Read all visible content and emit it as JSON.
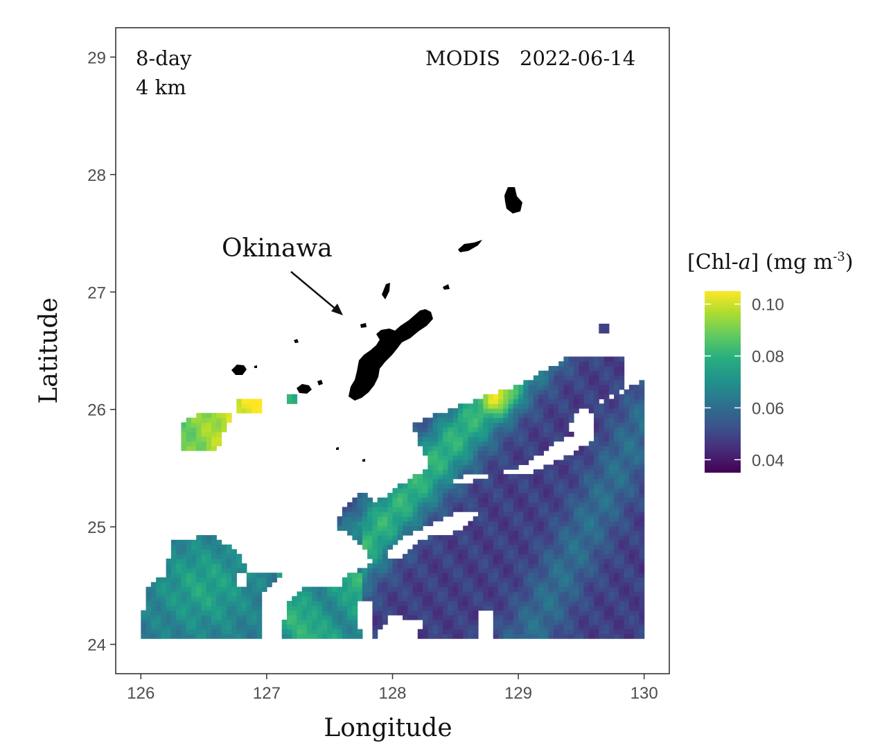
{
  "map": {
    "product": "8-day",
    "resolution": "4 km",
    "sensor": "MODIS",
    "date": "2022-06-14",
    "annotation": "Okinawa",
    "x_axis": {
      "label": "Longitude",
      "range": [
        125.8,
        130.2
      ],
      "ticks": [
        "126",
        "127",
        "128",
        "129",
        "130"
      ]
    },
    "y_axis": {
      "label": "Latitude",
      "range": [
        23.75,
        29.25
      ],
      "ticks": [
        "24",
        "25",
        "26",
        "27",
        "28",
        "29"
      ]
    },
    "legend": {
      "title": "[Chl-",
      "title_italic": "a",
      "title_tail": "] (mg m",
      "title_sup": "-3",
      "title_close": ")",
      "ticks": [
        "0.10",
        "0.08",
        "0.06",
        "0.04"
      ],
      "range": [
        0.035,
        0.105
      ]
    },
    "colormap": "viridis"
  }
}
